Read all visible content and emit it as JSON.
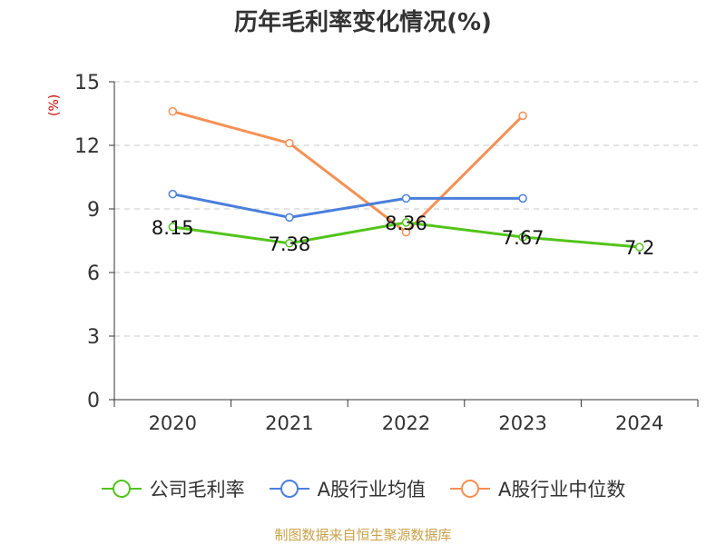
{
  "chart_data": {
    "type": "line",
    "title": "历年毛利率变化情况(%)",
    "ylabel": "(%)",
    "xlabel": "",
    "categories": [
      "2020",
      "2021",
      "2022",
      "2023",
      "2024"
    ],
    "ylim": [
      0,
      15
    ],
    "yticks": [
      0,
      3,
      6,
      9,
      12,
      15
    ],
    "grid": "dashed-horizontal",
    "legend_position": "bottom",
    "series": [
      {
        "name": "公司毛利率",
        "color": "#52c41a",
        "values": [
          8.15,
          7.38,
          8.36,
          7.67,
          7.2
        ],
        "labels": [
          "8.15",
          "7.38",
          "8.36",
          "7.67",
          "7.2"
        ]
      },
      {
        "name": "A股行业均值",
        "color": "#4a7fdc",
        "values": [
          9.7,
          8.6,
          9.5,
          9.5,
          null
        ]
      },
      {
        "name": "A股行业中位数",
        "color": "#f59053",
        "values": [
          13.6,
          12.1,
          7.9,
          13.4,
          null
        ]
      }
    ]
  },
  "source": "制图数据来自恒生聚源数据库"
}
